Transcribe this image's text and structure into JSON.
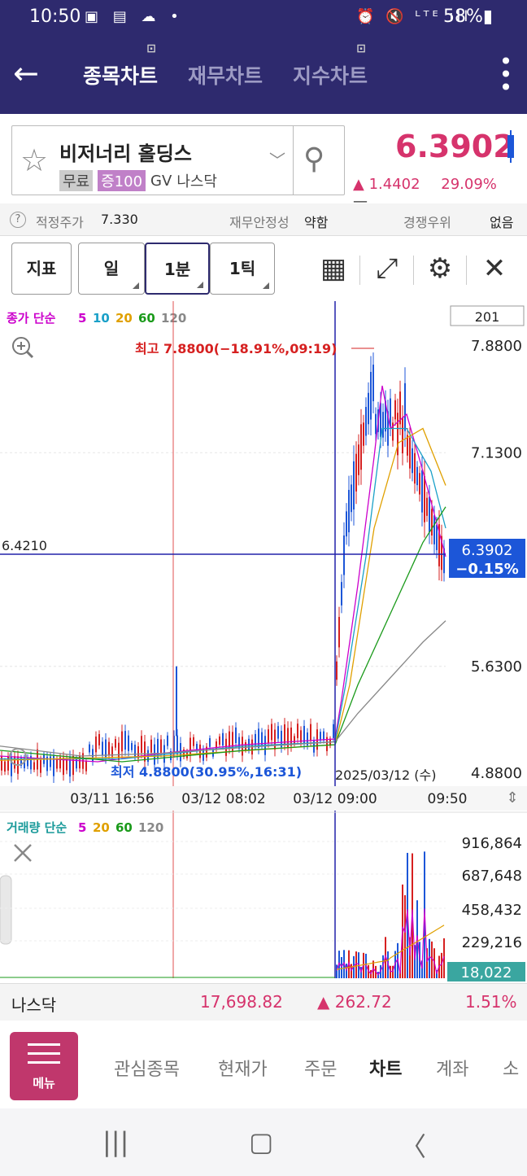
{
  "status": {
    "time": "10:50",
    "left_icons": "▣ ▤ ☁ •",
    "right_icons": "⏰ 🔇 ᴸᵀᴱ ıll",
    "battery": "58%▮"
  },
  "header": {
    "tabs": [
      {
        "label": "종목차트",
        "badge": "⊡"
      },
      {
        "label": "재무차트",
        "badge": ""
      },
      {
        "label": "지수차트",
        "badge": "⊡"
      }
    ]
  },
  "stock": {
    "name": "비저너리 홀딩스",
    "tags": [
      "무료",
      "증100",
      "GV",
      "나스닥"
    ],
    "price": "6.3902",
    "change": "▲ 1.4402",
    "change_pct": "29.09%",
    "dash": "—"
  },
  "info": {
    "q": "?",
    "fair_price_label": "적정주가",
    "fair_price": "7.330",
    "fin_label": "재무안정성",
    "fin": "약함",
    "comp_label": "경쟁우위",
    "comp": "없음"
  },
  "toolbar": {
    "indicator": "지표",
    "day": "일",
    "min": "1분",
    "tick": "1틱"
  },
  "chart_data": {
    "type": "candlestick",
    "price_legend": {
      "prefix": "종가 단순",
      "periods": [
        "5",
        "10",
        "20",
        "60",
        "120"
      ],
      "colors": [
        "#cc00cc",
        "#1aa0c8",
        "#e0a000",
        "#1a9a1a",
        "#888888"
      ]
    },
    "count_box": "201",
    "y_ticks": [
      "7.8800",
      "7.1300",
      "5.6300",
      "4.8800"
    ],
    "y_range": [
      4.88,
      7.88
    ],
    "high_label": "최고 7.8800(−18.91%,09:19)",
    "low_label": "최저 4.8800(30.95%,16:31)",
    "crosshair_value": "6.4210",
    "current_price": "6.3902",
    "current_pct": "−0.15%",
    "date_label": "2025/03/12 (수)",
    "x_ticks": [
      "03/11 16:56",
      "03/12 08:02",
      "03/12 09:00",
      "09:50"
    ],
    "volume_legend": {
      "prefix": "거래량 단순",
      "periods": [
        "5",
        "20",
        "60",
        "120"
      ],
      "colors": [
        "#cc00cc",
        "#e0a000",
        "#1a9a1a",
        "#888888"
      ]
    },
    "volume_ticks": [
      "916,864",
      "687,648",
      "458,432",
      "229,216"
    ],
    "volume_current": "18,022"
  },
  "index": {
    "name": "나스닥",
    "value": "17,698.82",
    "change": "▲ 262.72",
    "pct": "1.51%"
  },
  "nav": {
    "menu": "메뉴",
    "items": [
      "관심종목",
      "현재가",
      "주문",
      "차트",
      "계좌",
      "소"
    ]
  }
}
